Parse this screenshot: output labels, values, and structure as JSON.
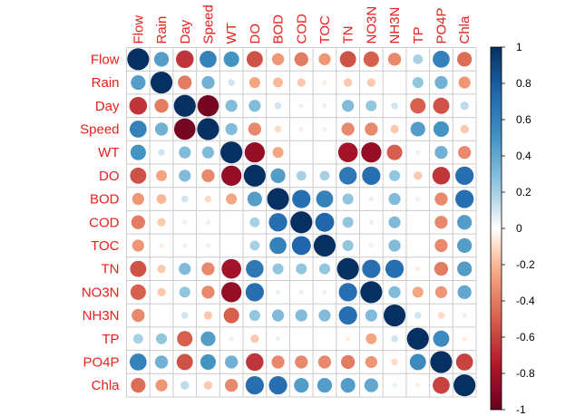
{
  "chart_data": {
    "type": "heatmap",
    "variables": [
      "Flow",
      "Rain",
      "Day",
      "Speed",
      "WT",
      "DO",
      "BOD",
      "COD",
      "TOC",
      "TN",
      "NO3N",
      "NH3N",
      "TP",
      "PO4P",
      "Chla"
    ],
    "matrix": [
      [
        1.0,
        0.45,
        -0.65,
        0.6,
        0.5,
        -0.55,
        -0.3,
        -0.4,
        -0.3,
        -0.55,
        -0.5,
        -0.35,
        0.2,
        0.6,
        -0.45
      ],
      [
        0.45,
        1.0,
        -0.4,
        0.35,
        0.1,
        -0.25,
        -0.2,
        -0.15,
        -0.05,
        -0.15,
        -0.15,
        0.0,
        0.25,
        0.35,
        -0.3
      ],
      [
        -0.65,
        -0.4,
        1.0,
        -0.95,
        0.3,
        0.3,
        0.1,
        0.05,
        0.05,
        0.3,
        0.25,
        0.1,
        -0.5,
        -0.55,
        0.15
      ],
      [
        0.6,
        0.35,
        -0.95,
        1.0,
        0.3,
        -0.35,
        -0.1,
        -0.05,
        -0.05,
        -0.35,
        -0.35,
        -0.15,
        0.45,
        0.5,
        -0.15
      ],
      [
        0.5,
        0.1,
        0.3,
        0.3,
        1.0,
        -0.85,
        -0.25,
        0.0,
        0.0,
        -0.8,
        -0.85,
        -0.5,
        0.05,
        0.35,
        -0.35
      ],
      [
        -0.55,
        -0.25,
        0.3,
        -0.35,
        -0.85,
        1.0,
        0.45,
        0.2,
        0.2,
        0.65,
        0.7,
        0.25,
        -0.15,
        -0.65,
        0.7
      ],
      [
        -0.3,
        -0.2,
        0.1,
        -0.1,
        -0.25,
        0.45,
        1.0,
        0.7,
        0.6,
        0.25,
        0.05,
        0.3,
        0.05,
        -0.35,
        0.7
      ],
      [
        -0.4,
        -0.15,
        0.05,
        -0.05,
        0.0,
        0.2,
        0.7,
        1.0,
        0.75,
        0.25,
        0.05,
        0.3,
        0.0,
        -0.35,
        0.45
      ],
      [
        -0.3,
        -0.05,
        0.05,
        -0.05,
        0.0,
        0.2,
        0.6,
        0.75,
        1.0,
        0.25,
        0.05,
        0.3,
        0.0,
        -0.35,
        0.45
      ],
      [
        -0.55,
        -0.15,
        0.3,
        -0.35,
        -0.8,
        0.65,
        0.25,
        0.25,
        0.25,
        1.0,
        0.7,
        0.7,
        -0.05,
        -0.4,
        0.45
      ],
      [
        -0.5,
        -0.15,
        0.25,
        -0.35,
        -0.85,
        0.7,
        0.05,
        0.05,
        0.05,
        0.7,
        1.0,
        0.3,
        -0.25,
        -0.3,
        0.4
      ],
      [
        -0.35,
        0.0,
        0.1,
        -0.15,
        -0.5,
        0.25,
        0.3,
        0.3,
        0.3,
        0.7,
        0.3,
        1.0,
        0.1,
        -0.1,
        0.05
      ],
      [
        0.2,
        0.25,
        -0.5,
        0.45,
        0.05,
        -0.15,
        0.05,
        0.0,
        0.0,
        -0.05,
        -0.25,
        0.1,
        1.0,
        0.55,
        -0.05
      ],
      [
        0.6,
        0.35,
        -0.55,
        0.5,
        0.35,
        -0.65,
        -0.35,
        -0.35,
        -0.35,
        -0.4,
        -0.3,
        -0.1,
        0.55,
        1.0,
        -0.6
      ],
      [
        -0.45,
        -0.3,
        0.15,
        -0.15,
        -0.35,
        0.7,
        0.7,
        0.45,
        0.45,
        0.45,
        0.4,
        0.05,
        -0.05,
        -0.6,
        1.0
      ]
    ],
    "colorbar": {
      "range": [
        -1,
        1
      ],
      "tick_labels": [
        "1",
        "0.8",
        "0.6",
        "0.4",
        "0.2",
        "0",
        "-0.2",
        "-0.4",
        "-0.6",
        "-0.8",
        "-1"
      ]
    },
    "colors": {
      "label": "#e8201c",
      "grid": "#cccccc",
      "positive_end": "#053061",
      "negative_end": "#67001f",
      "neutral": "#ffffff"
    },
    "grid": true
  }
}
